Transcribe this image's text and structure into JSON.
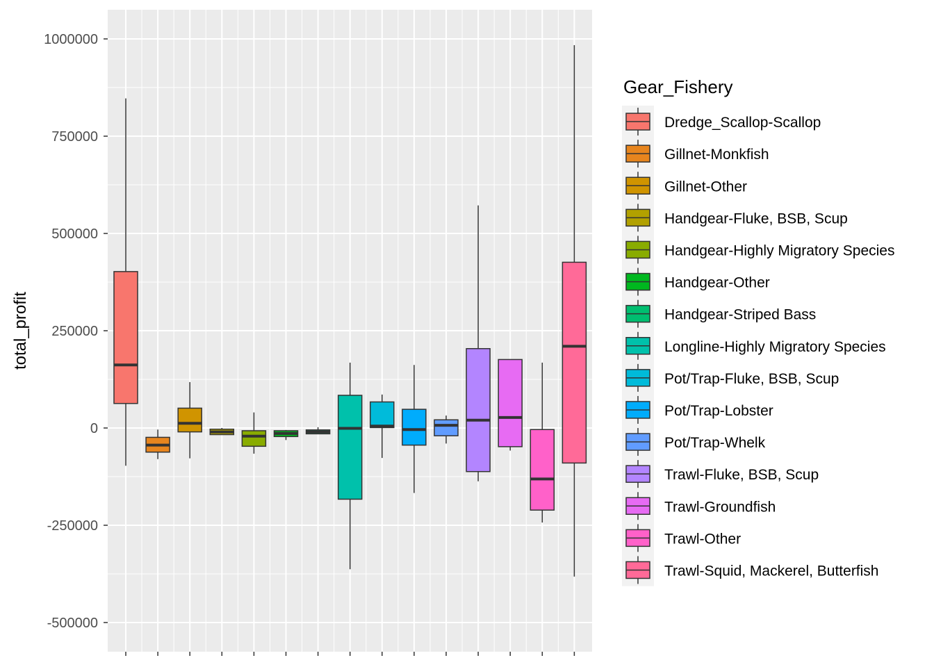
{
  "chart_data": {
    "type": "box",
    "title": "",
    "xlabel": "",
    "ylabel": "total_profit",
    "ylim": [
      -575000,
      1075000
    ],
    "y_ticks": [
      1000000,
      750000,
      500000,
      250000,
      0,
      -250000,
      -500000
    ],
    "y_tick_labels": [
      "1000000",
      "750000",
      "500000",
      "250000",
      "0",
      "-250000",
      "-500000"
    ],
    "grid": true,
    "legend": {
      "title": "Gear_Fishery",
      "position": "right"
    },
    "series": [
      {
        "name": "Dredge_Scallop-Scallop",
        "color": "#F8766D",
        "whisker_low": -97000,
        "q1": 63000,
        "median": 162000,
        "q3": 402000,
        "whisker_high": 847000
      },
      {
        "name": "Gillnet-Monkfish",
        "color": "#E7851E",
        "whisker_low": -80000,
        "q1": -62000,
        "median": -44000,
        "q3": -24000,
        "whisker_high": -4000
      },
      {
        "name": "Gillnet-Other",
        "color": "#D09400",
        "whisker_low": -78000,
        "q1": -10000,
        "median": 12000,
        "q3": 51000,
        "whisker_high": 118000
      },
      {
        "name": "Handgear-Fluke, BSB, Scup",
        "color": "#B2A100",
        "whisker_low": -17000,
        "q1": -17000,
        "median": -10000,
        "q3": -3000,
        "whisker_high": 0
      },
      {
        "name": "Handgear-Highly Migratory Species",
        "color": "#89AC00",
        "whisker_low": -66000,
        "q1": -47000,
        "median": -21000,
        "q3": -7000,
        "whisker_high": 40000
      },
      {
        "name": "Handgear-Other",
        "color": "#00B81F",
        "whisker_low": -31000,
        "q1": -22000,
        "median": -14000,
        "q3": -7000,
        "whisker_high": -5000
      },
      {
        "name": "Handgear-Striped Bass",
        "color": "#00BE70",
        "whisker_low": -15000,
        "q1": -15000,
        "median": -10000,
        "q3": -5000,
        "whisker_high": 2000
      },
      {
        "name": "Longline-Highly Migratory Species",
        "color": "#00C1AB",
        "whisker_low": -363000,
        "q1": -183000,
        "median": -1000,
        "q3": 84000,
        "whisker_high": 168000
      },
      {
        "name": "Pot/Trap-Fluke, BSB, Scup",
        "color": "#00BBDA",
        "whisker_low": -77000,
        "q1": 1000,
        "median": 5000,
        "q3": 67000,
        "whisker_high": 86000
      },
      {
        "name": "Pot/Trap-Lobster",
        "color": "#00ACFC",
        "whisker_low": -167000,
        "q1": -44000,
        "median": -4000,
        "q3": 48000,
        "whisker_high": 162000
      },
      {
        "name": "Pot/Trap-Whelk",
        "color": "#619CFF",
        "whisker_low": -40000,
        "q1": -20000,
        "median": 7000,
        "q3": 21000,
        "whisker_high": 32000
      },
      {
        "name": "Trawl-Fluke, BSB, Scup",
        "color": "#B385FF",
        "whisker_low": -137000,
        "q1": -112000,
        "median": 20000,
        "q3": 204000,
        "whisker_high": 572000
      },
      {
        "name": "Trawl-Groundfish",
        "color": "#E76BF3",
        "whisker_low": -58000,
        "q1": -48000,
        "median": 27000,
        "q3": 176000,
        "whisker_high": 176000
      },
      {
        "name": "Trawl-Other",
        "color": "#FF61C9",
        "whisker_low": -243000,
        "q1": -211000,
        "median": -131000,
        "q3": -4000,
        "whisker_high": 168000
      },
      {
        "name": "Trawl-Squid, Mackerel, Butterfish",
        "color": "#FF6A98",
        "whisker_low": -382000,
        "q1": -90000,
        "median": 210000,
        "q3": 426000,
        "whisker_high": 984000
      }
    ]
  }
}
